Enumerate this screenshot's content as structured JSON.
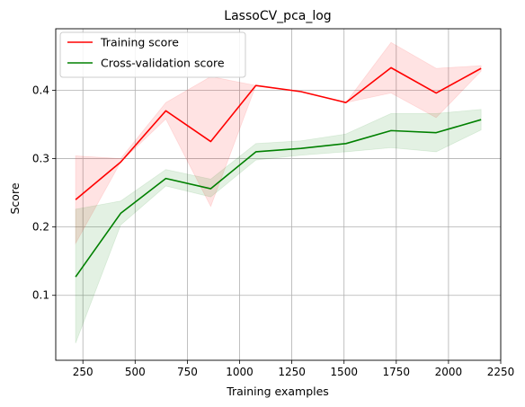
{
  "chart_data": {
    "type": "line",
    "title": "LassoCV_pca_log",
    "xlabel": "Training examples",
    "ylabel": "Score",
    "xlim": [
      120,
      2250
    ],
    "ylim": [
      0.005,
      0.49
    ],
    "xticks": [
      250,
      500,
      750,
      1000,
      1250,
      1500,
      1750,
      2000,
      2250
    ],
    "yticks": [
      0.1,
      0.2,
      0.3,
      0.4
    ],
    "xtick_labels": [
      "250",
      "500",
      "750",
      "1000",
      "1250",
      "1500",
      "1750",
      "2000",
      "2250"
    ],
    "ytick_labels": [
      "0.1",
      "0.2",
      "0.3",
      "0.4"
    ],
    "grid": true,
    "legend_position": "top-left",
    "x": [
      215,
      431,
      647,
      862,
      1078,
      1294,
      1509,
      1725,
      1941,
      2156
    ],
    "series": [
      {
        "name": "Training score",
        "color": "#ff0000",
        "values": [
          0.24,
          0.295,
          0.37,
          0.325,
          0.407,
          0.398,
          0.382,
          0.433,
          0.396,
          0.432
        ],
        "band_lower": [
          0.176,
          0.295,
          0.358,
          0.23,
          0.407,
          0.398,
          0.382,
          0.396,
          0.36,
          0.428
        ],
        "band_upper": [
          0.304,
          0.3,
          0.382,
          0.42,
          0.407,
          0.398,
          0.382,
          0.47,
          0.432,
          0.436
        ]
      },
      {
        "name": "Cross-validation score",
        "color": "#008000",
        "values": [
          0.127,
          0.22,
          0.271,
          0.256,
          0.31,
          0.315,
          0.322,
          0.341,
          0.338,
          0.357
        ],
        "band_lower": [
          0.03,
          0.203,
          0.26,
          0.244,
          0.298,
          0.305,
          0.31,
          0.316,
          0.31,
          0.342
        ],
        "band_upper": [
          0.226,
          0.238,
          0.284,
          0.27,
          0.322,
          0.326,
          0.336,
          0.366,
          0.366,
          0.372
        ]
      }
    ]
  }
}
